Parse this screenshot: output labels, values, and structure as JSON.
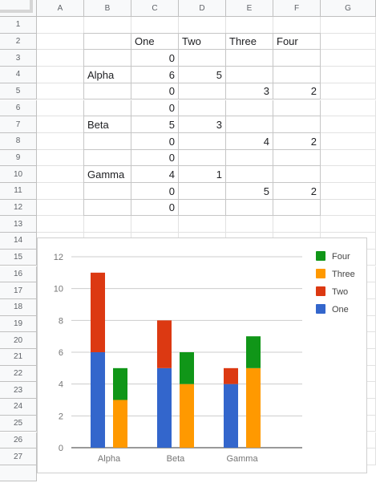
{
  "columns": [
    "A",
    "B",
    "C",
    "D",
    "E",
    "F",
    "G"
  ],
  "rows": [
    "1",
    "2",
    "3",
    "4",
    "5",
    "6",
    "7",
    "8",
    "9",
    "10",
    "11",
    "12",
    "13",
    "14",
    "15",
    "16",
    "17",
    "18",
    "19",
    "20",
    "21",
    "22",
    "23",
    "24",
    "25",
    "26",
    "27",
    ""
  ],
  "table": {
    "headers": [
      "One",
      "Two",
      "Three",
      "Four"
    ],
    "rows": [
      {
        "label": "",
        "values": [
          "0",
          "",
          "",
          ""
        ]
      },
      {
        "label": "Alpha",
        "values": [
          "6",
          "5",
          "",
          ""
        ]
      },
      {
        "label": "",
        "values": [
          "0",
          "",
          "3",
          "2"
        ]
      },
      {
        "label": "",
        "values": [
          "0",
          "",
          "",
          ""
        ]
      },
      {
        "label": "Beta",
        "values": [
          "5",
          "3",
          "",
          ""
        ]
      },
      {
        "label": "",
        "values": [
          "0",
          "",
          "4",
          "2"
        ]
      },
      {
        "label": "",
        "values": [
          "0",
          "",
          "",
          ""
        ]
      },
      {
        "label": "Gamma",
        "values": [
          "4",
          "1",
          "",
          ""
        ]
      },
      {
        "label": "",
        "values": [
          "0",
          "",
          "5",
          "2"
        ]
      },
      {
        "label": "",
        "values": [
          "0",
          "",
          "",
          ""
        ]
      }
    ]
  },
  "chart_data": {
    "type": "bar",
    "stacked": true,
    "categories": [
      "Alpha",
      "Beta",
      "Gamma"
    ],
    "groups": [
      {
        "category": "Alpha",
        "bars": [
          {
            "One": 6,
            "Two": 5,
            "Three": 0,
            "Four": 0
          },
          {
            "One": 0,
            "Two": 0,
            "Three": 3,
            "Four": 2
          }
        ]
      },
      {
        "category": "Beta",
        "bars": [
          {
            "One": 5,
            "Two": 3,
            "Three": 0,
            "Four": 0
          },
          {
            "One": 0,
            "Two": 0,
            "Three": 4,
            "Four": 2
          }
        ]
      },
      {
        "category": "Gamma",
        "bars": [
          {
            "One": 4,
            "Two": 1,
            "Three": 0,
            "Four": 0
          },
          {
            "One": 0,
            "Two": 0,
            "Three": 5,
            "Four": 2
          }
        ]
      }
    ],
    "series": [
      {
        "name": "One",
        "color": "#3366cc"
      },
      {
        "name": "Two",
        "color": "#dc3912"
      },
      {
        "name": "Three",
        "color": "#ff9900"
      },
      {
        "name": "Four",
        "color": "#109618"
      }
    ],
    "legend_order": [
      "Four",
      "Three",
      "Two",
      "One"
    ],
    "legend_position": "right",
    "ylim": [
      0,
      12
    ],
    "yticks": [
      "0",
      "2",
      "4",
      "6",
      "8",
      "10",
      "12"
    ],
    "grid": true,
    "title": "",
    "xlabel": "",
    "ylabel": ""
  }
}
